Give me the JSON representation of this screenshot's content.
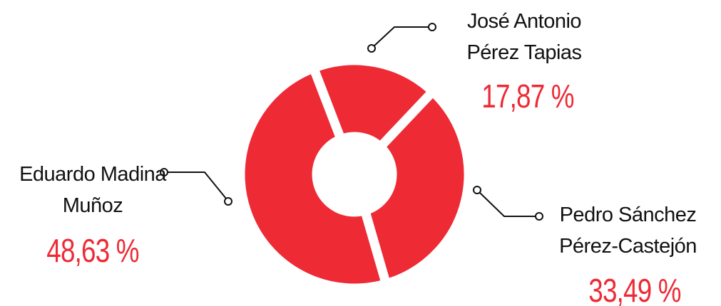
{
  "chart_data": {
    "type": "pie",
    "categories": [
      "José Antonio Pérez Tapias",
      "Pedro Sánchez Pérez-Castejón",
      "Eduardo Madina Muñoz"
    ],
    "values": [
      17.87,
      33.49,
      48.63
    ],
    "value_labels": [
      "17,87 %",
      "33,49 %",
      "48,63 %"
    ],
    "color": "#ee2a35"
  }
}
